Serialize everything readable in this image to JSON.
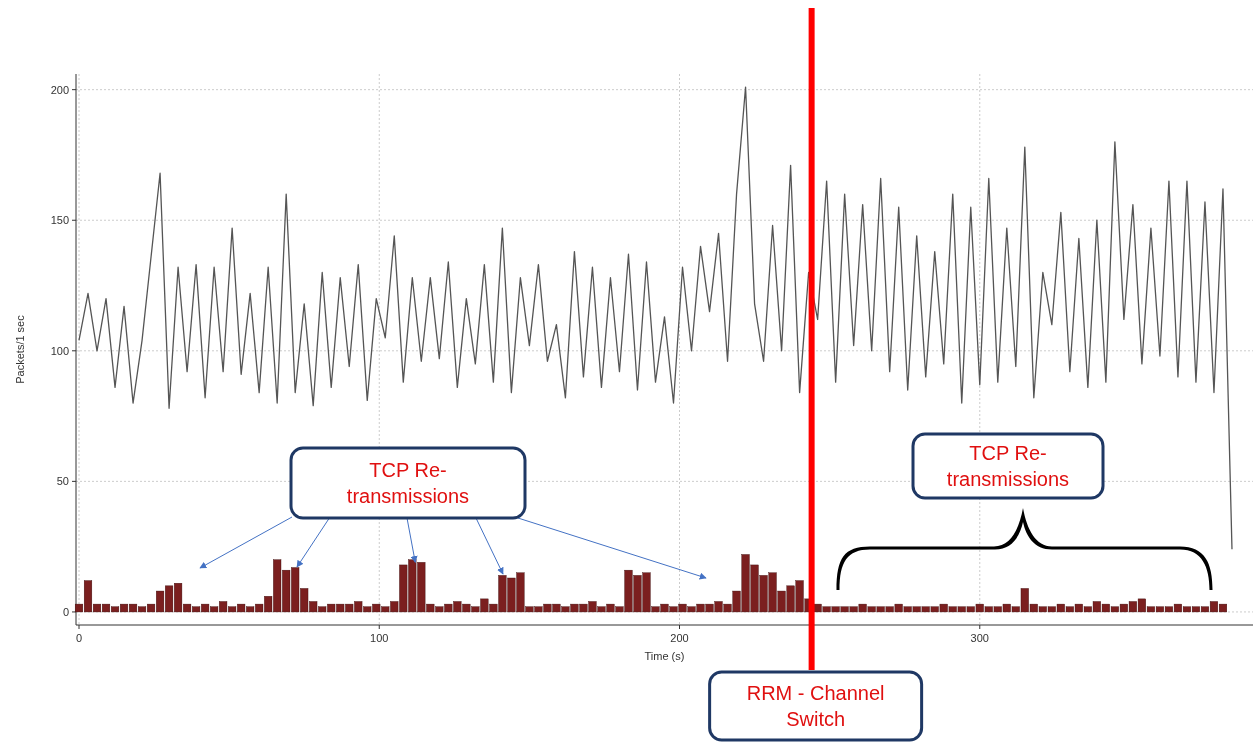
{
  "chart_data": {
    "type": "line",
    "xlabel": "Time (s)",
    "ylabel": "Packets/1 sec",
    "xlim": [
      -1,
      391
    ],
    "ylim": [
      -5,
      206
    ],
    "xticks": [
      0,
      100,
      200,
      300
    ],
    "yticks": [
      0,
      50,
      100,
      150,
      200
    ],
    "grid": true,
    "series": [
      {
        "color": "#555555",
        "x": [
          0,
          3,
          6,
          9,
          12,
          15,
          18,
          21,
          24,
          27,
          30,
          33,
          36,
          39,
          42,
          45,
          48,
          51,
          54,
          57,
          60,
          63,
          66,
          69,
          72,
          75,
          78,
          81,
          84,
          87,
          90,
          93,
          96,
          99,
          102,
          105,
          108,
          111,
          114,
          117,
          120,
          123,
          126,
          129,
          132,
          135,
          138,
          141,
          144,
          147,
          150,
          153,
          156,
          159,
          162,
          165,
          168,
          171,
          174,
          177,
          180,
          183,
          186,
          189,
          192,
          195,
          198,
          201,
          204,
          207,
          210,
          213,
          216,
          219,
          222,
          225,
          228,
          231,
          234,
          237,
          240,
          243,
          246,
          249,
          252,
          255,
          258,
          261,
          264,
          267,
          270,
          273,
          276,
          279,
          282,
          285,
          288,
          291,
          294,
          297,
          300,
          303,
          306,
          309,
          312,
          315,
          318,
          321,
          324,
          327,
          330,
          333,
          336,
          339,
          342,
          345,
          348,
          351,
          354,
          357,
          360,
          363,
          366,
          369,
          372,
          375,
          378,
          381,
          384
        ],
        "values": [
          104,
          122,
          100,
          120,
          86,
          117,
          80,
          104,
          136,
          168,
          78,
          132,
          92,
          133,
          82,
          132,
          92,
          147,
          91,
          122,
          84,
          132,
          80,
          160,
          84,
          118,
          79,
          130,
          86,
          128,
          94,
          133,
          81,
          120,
          105,
          144,
          88,
          128,
          96,
          128,
          97,
          134,
          86,
          120,
          95,
          133,
          88,
          147,
          84,
          128,
          102,
          133,
          96,
          110,
          82,
          138,
          90,
          132,
          86,
          128,
          92,
          137,
          85,
          134,
          88,
          113,
          80,
          132,
          100,
          140,
          115,
          145,
          96,
          160,
          201,
          118,
          96,
          148,
          100,
          171,
          84,
          130,
          112,
          165,
          88,
          160,
          102,
          156,
          100,
          166,
          92,
          155,
          85,
          144,
          90,
          138,
          95,
          160,
          80,
          155,
          87,
          166,
          88,
          147,
          94,
          178,
          82,
          130,
          110,
          153,
          92,
          143,
          86,
          150,
          88,
          180,
          112,
          156,
          95,
          147,
          98,
          165,
          90,
          165,
          88,
          157,
          84,
          162,
          24
        ]
      },
      {
        "type": "bar",
        "color": "#7b1f1f",
        "x": [
          0,
          3,
          6,
          9,
          12,
          15,
          18,
          21,
          24,
          27,
          30,
          33,
          36,
          39,
          42,
          45,
          48,
          51,
          54,
          57,
          60,
          63,
          66,
          69,
          72,
          75,
          78,
          81,
          84,
          87,
          90,
          93,
          96,
          99,
          102,
          105,
          108,
          111,
          114,
          117,
          120,
          123,
          126,
          129,
          132,
          135,
          138,
          141,
          144,
          147,
          150,
          153,
          156,
          159,
          162,
          165,
          168,
          171,
          174,
          177,
          180,
          183,
          186,
          189,
          192,
          195,
          198,
          201,
          204,
          207,
          210,
          213,
          216,
          219,
          222,
          225,
          228,
          231,
          234,
          237,
          240,
          243,
          246,
          249,
          252,
          255,
          258,
          261,
          264,
          267,
          270,
          273,
          276,
          279,
          282,
          285,
          288,
          291,
          294,
          297,
          300,
          303,
          306,
          309,
          312,
          315,
          318,
          321,
          324,
          327,
          330,
          333,
          336,
          339,
          342,
          345,
          348,
          351,
          354,
          357,
          360,
          363,
          366,
          369,
          372,
          375,
          378,
          381
        ],
        "values": [
          3,
          12,
          3,
          3,
          2,
          3,
          3,
          2,
          3,
          8,
          10,
          11,
          3,
          2,
          3,
          2,
          4,
          2,
          3,
          2,
          3,
          6,
          20,
          16,
          17,
          9,
          4,
          2,
          3,
          3,
          3,
          4,
          2,
          3,
          2,
          4,
          18,
          20,
          19,
          3,
          2,
          3,
          4,
          3,
          2,
          5,
          3,
          14,
          13,
          15,
          2,
          2,
          3,
          3,
          2,
          3,
          3,
          4,
          2,
          3,
          2,
          16,
          14,
          15,
          2,
          3,
          2,
          3,
          2,
          3,
          3,
          4,
          3,
          8,
          22,
          18,
          14,
          15,
          8,
          10,
          12,
          5,
          3,
          2,
          2,
          2,
          2,
          3,
          2,
          2,
          2,
          3,
          2,
          2,
          2,
          2,
          3,
          2,
          2,
          2,
          3,
          2,
          2,
          3,
          2,
          9,
          3,
          2,
          2,
          3,
          2,
          3,
          2,
          4,
          3,
          2,
          3,
          4,
          5,
          2,
          2,
          2,
          3,
          2,
          2,
          2,
          4,
          3
        ]
      }
    ],
    "ref_lines": [
      {
        "axis": "x",
        "value": 244,
        "label": "RRM - Channel Switch",
        "color": "#ff0000"
      }
    ],
    "annotations": [
      {
        "text": "TCP Re-transmissions",
        "x": 112,
        "y": 19
      },
      "TCP Re-transmissions"
    ]
  }
}
